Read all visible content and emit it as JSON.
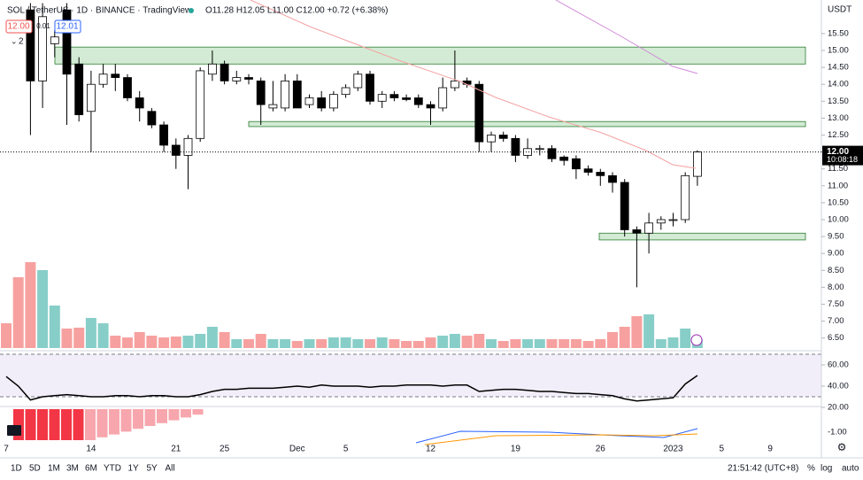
{
  "header": {
    "symbol": "SOL / TetherUS · 1D · BINANCE · TradingView",
    "ohlc": "O11.28 H12.05 L11.00 C12.00 +0.72 (+6.38%)",
    "sell": "12.00",
    "spread": "0.01",
    "buy": "12.01",
    "indicators": "2"
  },
  "currency": "USDT",
  "price_label": "12.00",
  "countdown": "10:08:18",
  "toolbar": {
    "ranges": [
      "1D",
      "5D",
      "1M",
      "3M",
      "6M",
      "YTD",
      "1Y",
      "5Y",
      "All"
    ],
    "clock": "21:51:42 (UTC+8)",
    "options": [
      "%",
      "log",
      "auto"
    ]
  },
  "chart_data": {
    "type": "candlestick",
    "categories": [
      "7",
      null,
      null,
      null,
      null,
      null,
      null,
      "14",
      null,
      null,
      null,
      null,
      null,
      null,
      "21",
      null,
      null,
      null,
      "25",
      null,
      null,
      null,
      null,
      null,
      "Dec",
      null,
      null,
      null,
      "5",
      null,
      null,
      null,
      null,
      null,
      null,
      "12",
      null,
      null,
      null,
      null,
      null,
      null,
      "19",
      null,
      null,
      null,
      null,
      null,
      null,
      "26",
      null,
      null,
      null,
      null,
      null,
      "2023",
      null,
      null,
      null,
      "5",
      null,
      null,
      null,
      "9"
    ],
    "candles": [
      null,
      null,
      [
        16.2,
        16.4,
        12.5,
        14.1
      ],
      [
        14.1,
        16.4,
        13.3,
        16.0
      ],
      [
        15.2,
        15.6,
        14.8,
        15.4
      ],
      [
        16.2,
        16.4,
        12.8,
        14.3
      ],
      [
        14.6,
        14.8,
        12.9,
        13.1
      ],
      [
        13.2,
        14.4,
        12.0,
        14.0
      ],
      [
        14.0,
        14.6,
        13.9,
        14.3
      ],
      [
        14.3,
        14.6,
        13.8,
        14.2
      ],
      [
        14.2,
        14.3,
        13.5,
        13.6
      ],
      [
        13.6,
        13.8,
        12.9,
        13.3
      ],
      [
        13.2,
        13.3,
        12.7,
        12.8
      ],
      [
        12.8,
        12.9,
        12.0,
        12.2
      ],
      [
        12.2,
        12.4,
        11.5,
        11.9
      ],
      [
        11.9,
        12.5,
        10.9,
        12.4
      ],
      [
        12.4,
        14.5,
        12.3,
        14.4
      ],
      [
        14.3,
        15.0,
        14.1,
        14.6
      ],
      [
        14.6,
        14.7,
        14.0,
        14.1
      ],
      [
        14.1,
        14.4,
        14.0,
        14.2
      ],
      [
        14.2,
        14.3,
        14.0,
        14.15
      ],
      [
        14.1,
        14.2,
        12.8,
        13.4
      ],
      [
        13.3,
        14.1,
        13.2,
        13.4
      ],
      [
        13.3,
        14.3,
        13.2,
        14.1
      ],
      [
        14.1,
        14.3,
        13.3,
        13.3
      ],
      [
        13.4,
        13.7,
        13.3,
        13.6
      ],
      [
        13.6,
        13.8,
        13.2,
        13.3
      ],
      [
        13.3,
        13.8,
        13.2,
        13.7
      ],
      [
        13.7,
        14.0,
        13.6,
        13.9
      ],
      [
        13.9,
        14.4,
        13.8,
        14.3
      ],
      [
        14.3,
        14.4,
        13.4,
        13.5
      ],
      [
        13.5,
        13.8,
        13.3,
        13.7
      ],
      [
        13.7,
        13.8,
        13.5,
        13.6
      ],
      [
        13.6,
        13.7,
        13.5,
        13.55
      ],
      [
        13.6,
        13.7,
        13.3,
        13.4
      ],
      [
        13.4,
        13.5,
        12.8,
        13.3
      ],
      [
        13.3,
        14.2,
        13.2,
        13.9
      ],
      [
        13.9,
        15.0,
        13.8,
        14.1
      ],
      [
        14.1,
        14.2,
        13.9,
        14.0
      ],
      [
        14.0,
        14.1,
        12.0,
        12.3
      ],
      [
        12.3,
        12.6,
        12.0,
        12.5
      ],
      [
        12.5,
        12.6,
        12.3,
        12.4
      ],
      [
        12.4,
        12.5,
        11.7,
        11.9
      ],
      [
        11.9,
        12.4,
        11.8,
        12.1
      ],
      [
        12.1,
        12.2,
        11.9,
        12.1
      ],
      [
        12.1,
        12.2,
        11.7,
        11.8
      ],
      [
        11.85,
        11.9,
        11.6,
        11.75
      ],
      [
        11.8,
        11.9,
        11.2,
        11.5
      ],
      [
        11.5,
        11.6,
        11.3,
        11.4
      ],
      [
        11.4,
        11.5,
        11.0,
        11.3
      ],
      [
        11.3,
        11.4,
        10.8,
        11.1
      ],
      [
        11.1,
        11.2,
        9.5,
        9.7
      ],
      [
        9.7,
        9.8,
        8.0,
        9.6
      ],
      [
        9.6,
        10.2,
        9.0,
        9.9
      ],
      [
        9.9,
        10.1,
        9.7,
        10.0
      ],
      [
        10.0,
        10.2,
        9.8,
        10.0
      ],
      [
        10.0,
        11.4,
        9.9,
        11.3
      ],
      [
        11.28,
        12.05,
        11.0,
        12.0
      ],
      null,
      null,
      null,
      null,
      null,
      null
    ],
    "volumes": [
      28,
      80,
      97,
      88,
      48,
      22,
      23,
      34,
      28,
      14,
      12,
      18,
      14,
      12,
      13,
      14,
      16,
      24,
      18,
      10,
      10,
      16,
      10,
      10,
      8,
      10,
      10,
      12,
      12,
      10,
      10,
      12,
      10,
      8,
      8,
      12,
      14,
      16,
      14,
      16,
      10,
      8,
      10,
      10,
      10,
      10,
      10,
      10,
      8,
      10,
      18,
      24,
      36,
      38,
      10,
      12,
      22,
      10,
      null,
      null,
      null,
      null,
      null,
      null
    ],
    "rsi": [
      49,
      40,
      27,
      30,
      31,
      32,
      31,
      30,
      30,
      31,
      31,
      30,
      31,
      31,
      30,
      30,
      32,
      35,
      37,
      37,
      38,
      38,
      38,
      39,
      40,
      39,
      41,
      40,
      40,
      40,
      39,
      40,
      40,
      41,
      41,
      41,
      40,
      41,
      41,
      35,
      36,
      37,
      37,
      36,
      35,
      35,
      34,
      33,
      33,
      32,
      31,
      28,
      26,
      27,
      28,
      29,
      42,
      50,
      null,
      null,
      null,
      null,
      null,
      null
    ],
    "ylim": [
      6.2,
      16.4
    ],
    "yticks": [
      {
        "value": 6.5,
        "label": "6.50"
      },
      {
        "value": 7,
        "label": "7.00"
      },
      {
        "value": 7.5,
        "label": "7.50"
      },
      {
        "value": 8,
        "label": "8.00"
      },
      {
        "value": 8.5,
        "label": "8.50"
      },
      {
        "value": 9,
        "label": "9.00"
      },
      {
        "value": 9.5,
        "label": "9.50"
      },
      {
        "value": 10,
        "label": "10.00"
      },
      {
        "value": 10.5,
        "label": "10.50"
      },
      {
        "value": 11,
        "label": "11.00"
      },
      {
        "value": 11.5,
        "label": "11.50"
      },
      {
        "value": 12,
        "label": "12.00"
      },
      {
        "value": 12.5,
        "label": "12.50"
      },
      {
        "value": 13,
        "label": "13.00"
      },
      {
        "value": 13.5,
        "label": "13.50"
      },
      {
        "value": 14,
        "label": "14.00"
      },
      {
        "value": 14.5,
        "label": "14.50"
      },
      {
        "value": 15,
        "label": "15.00"
      },
      {
        "value": 15.5,
        "label": "15.50"
      }
    ],
    "zones": [
      {
        "top": 15.1,
        "bottom": 14.6
      },
      {
        "top": 12.9,
        "bottom": 12.75
      },
      {
        "top": 9.6,
        "bottom": 9.4
      }
    ],
    "rsi_lim": [
      19,
      72
    ],
    "rsi_ticks": [
      {
        "value": 60,
        "label": "60.00"
      },
      {
        "value": 40,
        "label": "40.00"
      },
      {
        "value": 20,
        "label": "20.00"
      }
    ],
    "macd_tick": "-1.00",
    "up_color": "#26a69a",
    "down_color": "#ef5350"
  }
}
